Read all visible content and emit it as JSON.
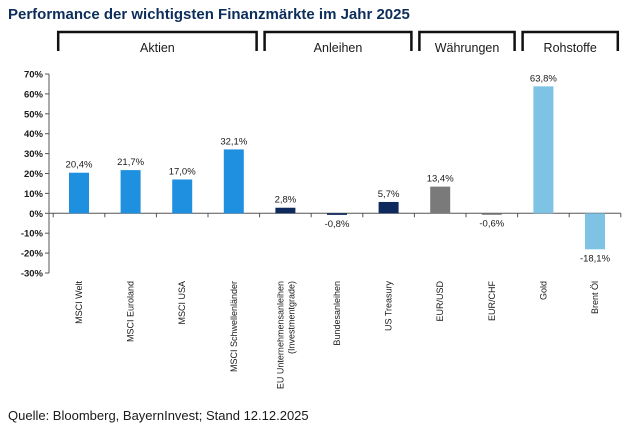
{
  "title": "Performance der wichtigsten Finanzmärkte im Jahr 2025",
  "source": "Quelle: Bloomberg, BayernInvest; Stand 12.12.2025",
  "chart_data": {
    "type": "bar",
    "title": "Performance der wichtigsten Finanzmärkte im Jahr 2025",
    "ylim": [
      -30,
      70
    ],
    "yticks": [
      "70%",
      "60%",
      "50%",
      "40%",
      "30%",
      "20%",
      "10%",
      "0%",
      "-10%",
      "-20%",
      "-30%"
    ],
    "grid": false,
    "groups": [
      {
        "name": "Aktien",
        "start": 0,
        "end": 3
      },
      {
        "name": "Anleihen",
        "start": 4,
        "end": 6
      },
      {
        "name": "Währungen",
        "start": 7,
        "end": 8
      },
      {
        "name": "Rohstoffe",
        "start": 9,
        "end": 10
      }
    ],
    "categories": [
      [
        "MSCI Welt"
      ],
      [
        "MSCI Euroland"
      ],
      [
        "MSCI USA"
      ],
      [
        "MSCI Schwellenländer"
      ],
      [
        "EU Unternehmensanleihen",
        "(Investmentgrade)"
      ],
      [
        "Bundesanleihen"
      ],
      [
        "US Treasury"
      ],
      [
        "EUR/USD"
      ],
      [
        "EUR/CHF"
      ],
      [
        "Gold"
      ],
      [
        "Brent Öl"
      ]
    ],
    "values": [
      20.4,
      21.7,
      17.0,
      32.1,
      2.8,
      -0.8,
      5.7,
      13.4,
      -0.6,
      63.8,
      -18.1
    ],
    "data_labels": [
      "20,4%",
      "21,7%",
      "17,0%",
      "32,1%",
      "2,8%",
      "-0,8%",
      "5,7%",
      "13,4%",
      "-0,6%",
      "63,8%",
      "-18,1%"
    ],
    "colors": [
      "#1f8fe0",
      "#1f8fe0",
      "#1f8fe0",
      "#1f8fe0",
      "#0e2a5c",
      "#0e2a5c",
      "#0e2a5c",
      "#7a7a7a",
      "#7a7a7a",
      "#7ec3e3",
      "#7ec3e3"
    ]
  }
}
